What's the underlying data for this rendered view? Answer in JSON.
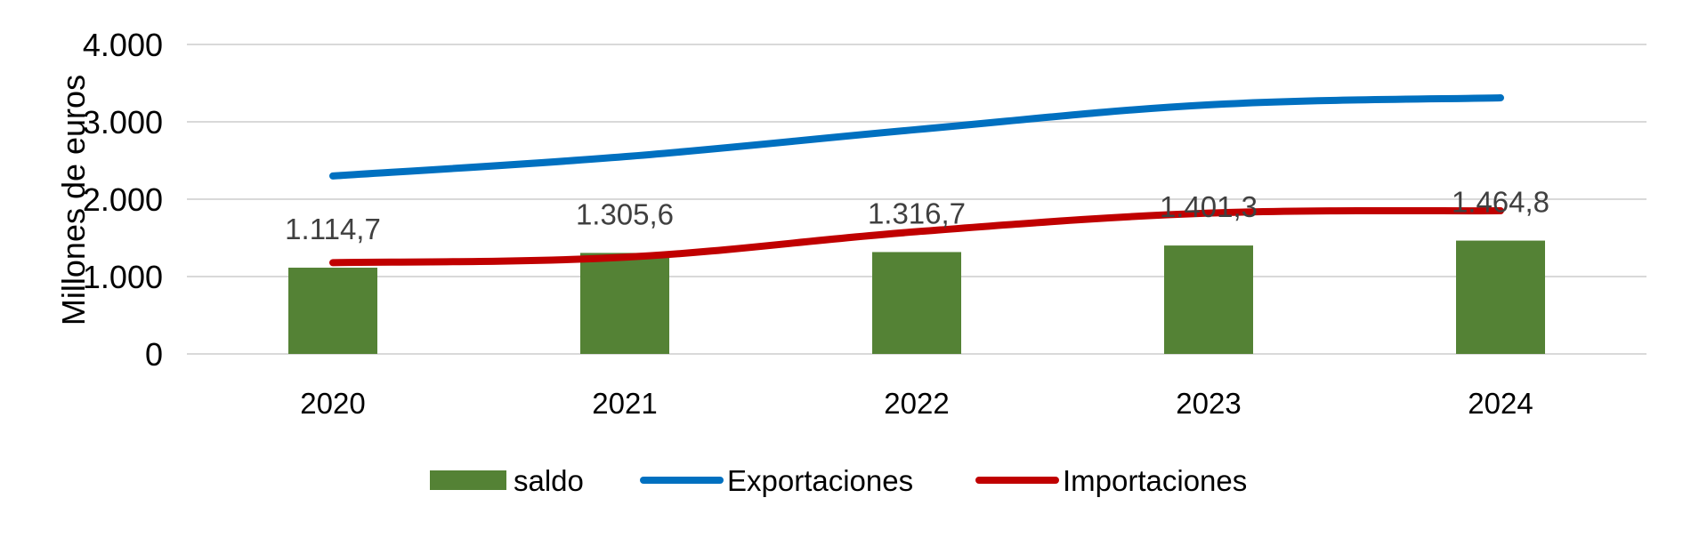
{
  "chart_data": {
    "type": "bar",
    "categories": [
      "2020",
      "2021",
      "2022",
      "2023",
      "2024"
    ],
    "ylabel": "Millones de euros",
    "ylim": [
      0,
      4000
    ],
    "yticks": [
      "0",
      "1.000",
      "2.000",
      "3.000",
      "4.000"
    ],
    "ytick_values": [
      0,
      1000,
      2000,
      3000,
      4000
    ],
    "grid": true,
    "legend_position": "bottom",
    "series": [
      {
        "name": "saldo",
        "kind": "bar",
        "color": "#548235",
        "values": [
          1114.7,
          1305.6,
          1316.7,
          1401.3,
          1464.8
        ],
        "labels": [
          "1.114,7",
          "1.305,6",
          "1.316,7",
          "1.401,3",
          "1.464,8"
        ]
      },
      {
        "name": "Exportaciones",
        "kind": "line",
        "color": "#0070C0",
        "values": [
          2300,
          2550,
          2900,
          3220,
          3310
        ]
      },
      {
        "name": "Importaciones",
        "kind": "line",
        "color": "#C00000",
        "values": [
          1180,
          1250,
          1580,
          1820,
          1850
        ]
      }
    ]
  }
}
